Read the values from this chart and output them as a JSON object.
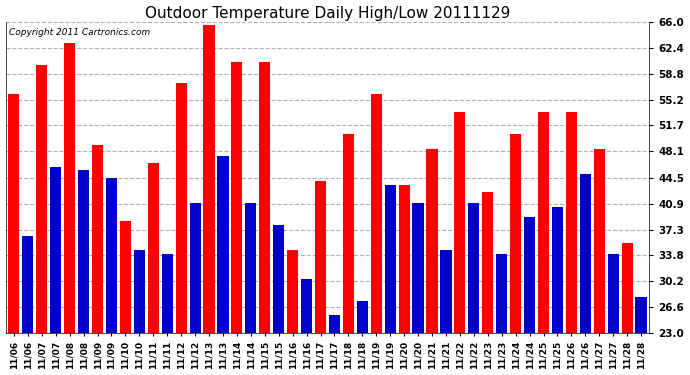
{
  "title": "Outdoor Temperature Daily High/Low 20111129",
  "copyright": "Copyright 2011 Cartronics.com",
  "bar_labels": [
    "11/06",
    "11/06",
    "11/07",
    "11/07",
    "11/08",
    "11/08",
    "11/09",
    "11/09",
    "11/10",
    "11/10",
    "11/11",
    "11/11",
    "11/12",
    "11/12",
    "11/13",
    "11/13",
    "11/14",
    "11/14",
    "11/15",
    "11/15",
    "11/16",
    "11/16",
    "11/17",
    "11/17",
    "11/18",
    "11/18",
    "11/19",
    "11/19",
    "11/20",
    "11/20",
    "11/21",
    "11/21",
    "11/22",
    "11/22",
    "11/23",
    "11/23",
    "11/24",
    "11/24",
    "11/25",
    "11/25",
    "11/26",
    "11/26",
    "11/27",
    "11/27",
    "11/28",
    "11/28"
  ],
  "bar_values": [
    56.0,
    36.5,
    60.0,
    46.0,
    63.0,
    45.5,
    49.0,
    44.5,
    38.5,
    34.5,
    46.5,
    34.0,
    57.5,
    41.0,
    65.5,
    47.5,
    60.5,
    41.0,
    60.5,
    38.0,
    34.5,
    30.5,
    44.0,
    25.5,
    50.5,
    27.5,
    56.0,
    43.5,
    43.5,
    41.0,
    48.5,
    34.5,
    53.5,
    41.0,
    42.5,
    34.0,
    50.5,
    39.0,
    53.5,
    40.5,
    53.5,
    45.0,
    48.5,
    34.0,
    35.5,
    28.0
  ],
  "bar_colors": [
    "#ff0000",
    "#0000cc",
    "#ff0000",
    "#0000cc",
    "#ff0000",
    "#0000cc",
    "#ff0000",
    "#0000cc",
    "#ff0000",
    "#0000cc",
    "#ff0000",
    "#0000cc",
    "#ff0000",
    "#0000cc",
    "#ff0000",
    "#0000cc",
    "#ff0000",
    "#0000cc",
    "#ff0000",
    "#0000cc",
    "#ff0000",
    "#0000cc",
    "#ff0000",
    "#0000cc",
    "#ff0000",
    "#0000cc",
    "#ff0000",
    "#0000cc",
    "#ff0000",
    "#0000cc",
    "#ff0000",
    "#0000cc",
    "#ff0000",
    "#0000cc",
    "#ff0000",
    "#0000cc",
    "#ff0000",
    "#0000cc",
    "#ff0000",
    "#0000cc",
    "#ff0000",
    "#0000cc",
    "#ff0000",
    "#0000cc",
    "#ff0000",
    "#0000cc"
  ],
  "bg_color": "#ffffff",
  "grid_color": "#b0b0b0",
  "ymin": 23.0,
  "ymax": 66.0,
  "yticks": [
    23.0,
    26.6,
    30.2,
    33.8,
    37.3,
    40.9,
    44.5,
    48.1,
    51.7,
    55.2,
    58.8,
    62.4,
    66.0
  ]
}
